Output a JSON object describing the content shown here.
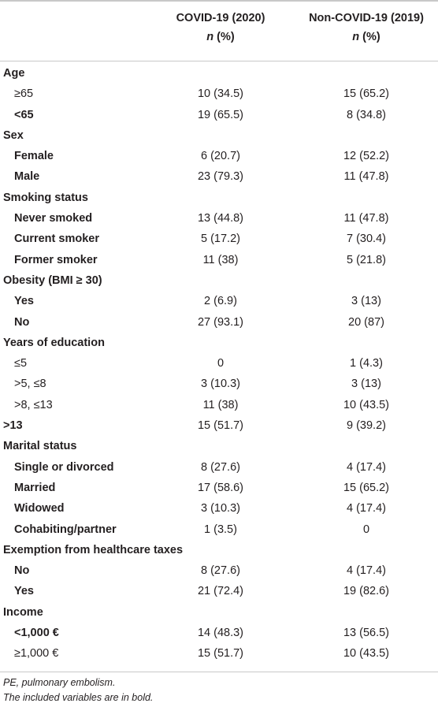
{
  "header": {
    "col1_title": "COVID-19 (2020)",
    "col1_sub": "n",
    "col1_sub_pct": " (%)",
    "col2_title": "Non-COVID-19 (2019)",
    "col2_sub": "n",
    "col2_sub_pct": " (%)"
  },
  "rows": [
    {
      "label": "Age",
      "v1": "",
      "v2": ""
    },
    {
      "label": "≥65",
      "v1": "10 (34.5)",
      "v2": "15 (65.2)"
    },
    {
      "label": "<65",
      "v1": "19 (65.5)",
      "v2": "8 (34.8)"
    },
    {
      "label": "Sex",
      "v1": "",
      "v2": ""
    },
    {
      "label": "Female",
      "v1": "6 (20.7)",
      "v2": "12 (52.2)"
    },
    {
      "label": "Male",
      "v1": "23 (79.3)",
      "v2": "11 (47.8)"
    },
    {
      "label": "Smoking status",
      "v1": "",
      "v2": ""
    },
    {
      "label": "Never smoked",
      "v1": "13 (44.8)",
      "v2": "11 (47.8)"
    },
    {
      "label": "Current smoker",
      "v1": "5 (17.2)",
      "v2": "7 (30.4)"
    },
    {
      "label": "Former smoker",
      "v1": "11 (38)",
      "v2": "5 (21.8)"
    },
    {
      "label": "Obesity (BMI ≥ 30)",
      "v1": "",
      "v2": ""
    },
    {
      "label": "Yes",
      "v1": "2 (6.9)",
      "v2": "3 (13)"
    },
    {
      "label": "No",
      "v1": "27 (93.1)",
      "v2": "20 (87)"
    },
    {
      "label": "Years of education",
      "v1": "",
      "v2": ""
    },
    {
      "label": "≤5",
      "v1": "0",
      "v2": "1 (4.3)"
    },
    {
      "label": ">5, ≤8",
      "v1": "3 (10.3)",
      "v2": "3 (13)"
    },
    {
      "label": ">8, ≤13",
      "v1": "11 (38)",
      "v2": "10 (43.5)"
    },
    {
      "label": ">13",
      "v1": "15 (51.7)",
      "v2": "9 (39.2)"
    },
    {
      "label": "Marital status",
      "v1": "",
      "v2": ""
    },
    {
      "label": "Single or divorced",
      "v1": "8 (27.6)",
      "v2": "4 (17.4)"
    },
    {
      "label": "Married",
      "v1": "17 (58.6)",
      "v2": "15 (65.2)"
    },
    {
      "label": "Widowed",
      "v1": "3 (10.3)",
      "v2": "4 (17.4)"
    },
    {
      "label": "Cohabiting/partner",
      "v1": "1 (3.5)",
      "v2": "0"
    },
    {
      "label": "Exemption from healthcare taxes",
      "v1": "",
      "v2": ""
    },
    {
      "label": "No",
      "v1": "8 (27.6)",
      "v2": "4 (17.4)"
    },
    {
      "label": "Yes",
      "v1": "21 (72.4)",
      "v2": "19 (82.6)"
    },
    {
      "label": "Income",
      "v1": "",
      "v2": ""
    },
    {
      "label": "<1,000 €",
      "v1": "14 (48.3)",
      "v2": "13 (56.5)"
    },
    {
      "label": "≥1,000 €",
      "v1": "15 (51.7)",
      "v2": "10 (43.5)"
    }
  ],
  "footnotes": {
    "line1": "PE, pulmonary embolism.",
    "line2": "The included variables are in bold."
  }
}
